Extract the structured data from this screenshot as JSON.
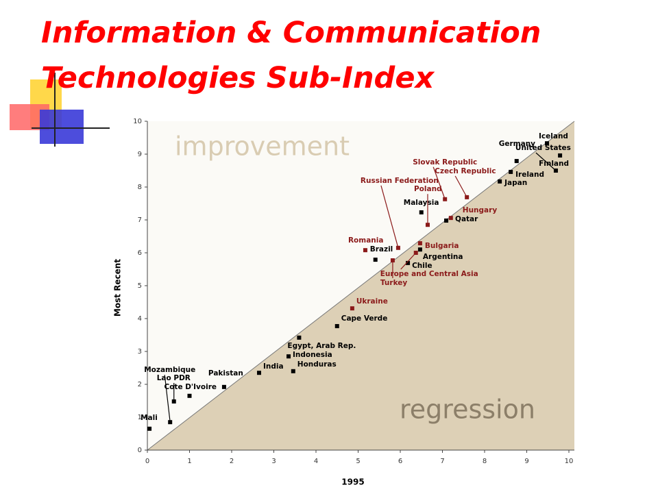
{
  "header": {
    "title_lines": [
      "Information & Communication",
      "Technologies Sub-Index"
    ]
  },
  "chart_data": {
    "type": "scatter",
    "xlabel": "1995",
    "ylabel": "Most Recent",
    "annotations": [
      "improvement",
      "regression"
    ],
    "xlim": [
      0,
      10
    ],
    "ylim": [
      0,
      10
    ],
    "xticks": [
      0,
      1,
      2,
      3,
      4,
      5,
      6,
      7,
      8,
      9,
      10
    ],
    "yticks": [
      0,
      1,
      2,
      3,
      4,
      5,
      6,
      7,
      8,
      9,
      10
    ],
    "series": [
      {
        "color": "#000000",
        "labels": [
          "Mali",
          "Mozambique",
          "Lao PDR",
          "Cote D'Ivoire",
          "Pakistan",
          "India",
          "Honduras",
          "Indonesia",
          "Egypt, Arab Rep.",
          "Cape Verde",
          "Brazil",
          "Chile",
          "Argentina",
          "Malaysia",
          "Qatar",
          "Japan",
          "Ireland",
          "Germany",
          "Iceland",
          "Finland",
          "United States"
        ],
        "x": [
          0.05,
          0.54,
          0.63,
          1.0,
          1.82,
          2.65,
          3.46,
          3.35,
          3.6,
          4.5,
          5.41,
          6.18,
          6.47,
          6.5,
          7.09,
          8.36,
          8.62,
          8.76,
          9.48,
          9.79,
          9.69
        ],
        "values": [
          0.65,
          0.85,
          1.48,
          1.65,
          1.92,
          2.35,
          2.4,
          2.85,
          3.42,
          3.77,
          5.79,
          5.69,
          6.1,
          7.23,
          6.98,
          8.17,
          8.46,
          8.79,
          9.33,
          8.96,
          8.5
        ]
      },
      {
        "color": "#8b1a1a",
        "labels": [
          "Ukraine",
          "Europe and Central Asia",
          "Turkey",
          "Romania",
          "Russian Federation",
          "Bulgaria",
          "Poland",
          "Hungary",
          "Slovak Republic",
          "Czech Republic"
        ],
        "x": [
          4.86,
          6.37,
          5.82,
          5.17,
          5.95,
          6.47,
          6.65,
          7.2,
          7.06,
          7.58
        ],
        "values": [
          4.31,
          6.0,
          5.77,
          6.08,
          6.15,
          6.29,
          6.85,
          7.06,
          7.63,
          7.69
        ]
      }
    ]
  }
}
